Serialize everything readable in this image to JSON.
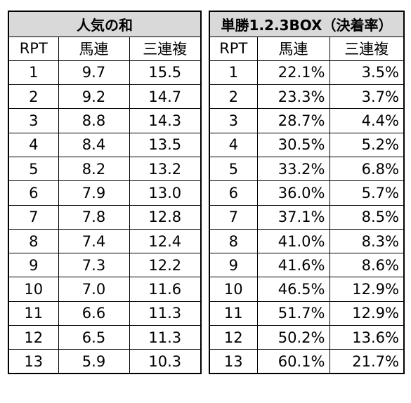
{
  "popularity_table": {
    "title": "人気の和",
    "headers": [
      "RPT",
      "馬連",
      "三連複"
    ],
    "rows": [
      [
        "1",
        "9.7",
        "15.5"
      ],
      [
        "2",
        "9.2",
        "14.7"
      ],
      [
        "3",
        "8.8",
        "14.3"
      ],
      [
        "4",
        "8.4",
        "13.5"
      ],
      [
        "5",
        "8.2",
        "13.2"
      ],
      [
        "6",
        "7.9",
        "13.0"
      ],
      [
        "7",
        "7.8",
        "12.8"
      ],
      [
        "8",
        "7.4",
        "12.4"
      ],
      [
        "9",
        "7.3",
        "12.2"
      ],
      [
        "10",
        "7.0",
        "11.6"
      ],
      [
        "11",
        "6.6",
        "11.3"
      ],
      [
        "12",
        "6.5",
        "11.3"
      ],
      [
        "13",
        "5.9",
        "10.3"
      ]
    ]
  },
  "box_table": {
    "title": "単勝1.2.3BOX（決着率）",
    "headers": [
      "RPT",
      "馬連",
      "三連複"
    ],
    "rows": [
      [
        "1",
        "22.1%",
        "3.5%"
      ],
      [
        "2",
        "23.3%",
        "3.7%"
      ],
      [
        "3",
        "28.7%",
        "4.4%"
      ],
      [
        "4",
        "30.5%",
        "5.2%"
      ],
      [
        "5",
        "33.2%",
        "6.8%"
      ],
      [
        "6",
        "36.0%",
        "5.7%"
      ],
      [
        "7",
        "37.1%",
        "8.5%"
      ],
      [
        "8",
        "41.0%",
        "8.3%"
      ],
      [
        "9",
        "41.6%",
        "8.6%"
      ],
      [
        "10",
        "46.5%",
        "12.9%"
      ],
      [
        "11",
        "51.7%",
        "12.9%"
      ],
      [
        "12",
        "50.2%",
        "13.6%"
      ],
      [
        "13",
        "60.1%",
        "21.7%"
      ]
    ]
  }
}
